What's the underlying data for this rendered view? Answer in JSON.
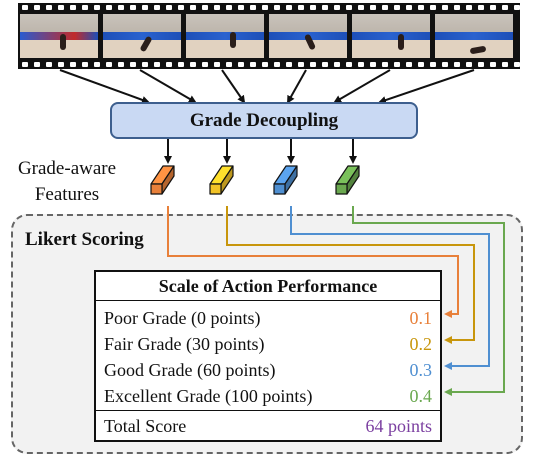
{
  "grade_decoupling_label": "Grade Decoupling",
  "grade_aware_label_line1": "Grade-aware",
  "grade_aware_label_line2": "Features",
  "likert_scoring_label": "Likert Scoring",
  "scale": {
    "title": "Scale of Action Performance",
    "rows": [
      {
        "label": "Poor Grade (0 points)",
        "value": "0.1",
        "color": "#e8803a"
      },
      {
        "label": "Fair Grade (30 points)",
        "value": "0.2",
        "color": "#c8960c"
      },
      {
        "label": "Good Grade (60 points)",
        "value": "0.3",
        "color": "#4f8fd1"
      },
      {
        "label": "Excellent Grade (100 points)",
        "value": "0.4",
        "color": "#6aa84f"
      }
    ],
    "total_label": "Total Score",
    "total_value": "64 points",
    "total_color": "#7b3fa0"
  },
  "feature_colors": [
    "#e8803a",
    "#f2c326",
    "#4f8fd1",
    "#6aa84f"
  ]
}
